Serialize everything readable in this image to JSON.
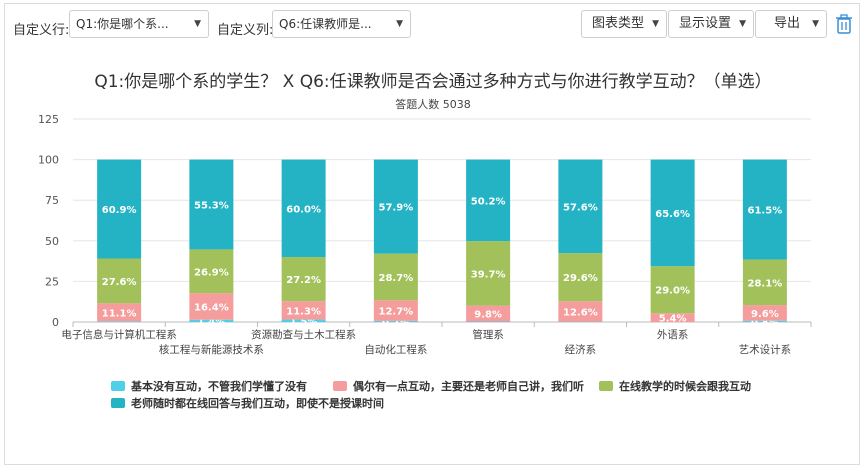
{
  "toolbar": {
    "row_label": "自定义行:",
    "row_value": "Q1:你是哪个系...",
    "col_label": "自定义列:",
    "col_value": "Q6:任课教师是...",
    "chart_type": "图表类型",
    "display": "显示设置",
    "export": "导出",
    "trash_icon": "trash-icon"
  },
  "colors": {
    "series": [
      "#4dd0e8",
      "#f59c9c",
      "#a3c15a",
      "#23b3c4"
    ]
  },
  "chart_data": {
    "type": "bar",
    "stacked": true,
    "title": "Q1:你是哪个系的学生？ X Q6:任课教师是否会通过多种方式与你进行教学互动？（单选）",
    "subtitle": "答题人数 5038",
    "ylim": [
      0,
      125
    ],
    "yticks": [
      0,
      25,
      50,
      75,
      100,
      125
    ],
    "grid": true,
    "categories": [
      "电子信息与计算机工程系",
      "核工程与新能源技术系",
      "资源勘查与土木工程系",
      "自动化工程系",
      "管理系",
      "经济系",
      "外语系",
      "艺术设计系"
    ],
    "series": [
      {
        "name": "基本没有互动，不管我们学懂了没有",
        "values": [
          0.4,
          1.4,
          1.5,
          0.7,
          0.3,
          0.2,
          0.0,
          0.8
        ],
        "labels": [
          "",
          "1.4%",
          "1.5%",
          "0.7%",
          "",
          "",
          "",
          "0.8%"
        ]
      },
      {
        "name": "偶尔有一点互动，主要还是老师自己讲，我们听",
        "values": [
          11.1,
          16.4,
          11.3,
          12.7,
          9.8,
          12.6,
          5.4,
          9.6
        ],
        "labels": [
          "11.1%",
          "16.4%",
          "11.3%",
          "12.7%",
          "9.8%",
          "12.6%",
          "5.4%",
          "9.6%"
        ]
      },
      {
        "name": "在线教学的时候会跟我互动",
        "values": [
          27.6,
          26.9,
          27.2,
          28.7,
          39.7,
          29.6,
          29.0,
          28.1
        ],
        "labels": [
          "27.6%",
          "26.9%",
          "27.2%",
          "28.7%",
          "39.7%",
          "29.6%",
          "29.0%",
          "28.1%"
        ]
      },
      {
        "name": "老师随时都在线回答与我们互动，即使不是授课时间",
        "values": [
          60.9,
          55.3,
          60.0,
          57.9,
          50.2,
          57.6,
          65.6,
          61.5
        ],
        "labels": [
          "60.9%",
          "55.3%",
          "60.0%",
          "57.9%",
          "50.2%",
          "57.6%",
          "65.6%",
          "61.5%"
        ]
      }
    ],
    "legend": "bottom"
  }
}
